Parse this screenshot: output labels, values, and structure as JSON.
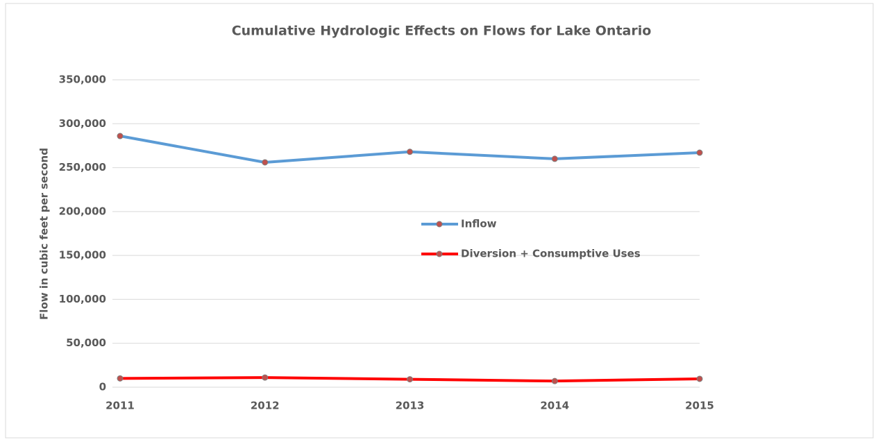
{
  "chart_data": {
    "type": "line",
    "title": "Cumulative Hydrologic Effects on Flows for Lake Ontario",
    "y_label": "Flow in cubic feet per second",
    "categories": [
      "2011",
      "2012",
      "2013",
      "2014",
      "2015"
    ],
    "series": [
      {
        "name": "Inflow",
        "color": "#5b9bd5",
        "values": [
          286000,
          256000,
          268000,
          260000,
          267000
        ]
      },
      {
        "name": "Diversion + Consumptive Uses",
        "color": "#ff0000",
        "values": [
          10000,
          11000,
          9000,
          7000,
          9500
        ]
      }
    ],
    "ylim": [
      0,
      350000
    ],
    "yticks": [
      0,
      {
        "value": 50000,
        "label": "50,000"
      },
      {
        "value": 100000,
        "label": "100,000"
      },
      {
        "value": 150000,
        "label": "150,000"
      },
      {
        "value": 200000,
        "label": "200,000"
      },
      {
        "value": 250000,
        "label": "250,000"
      },
      {
        "value": 300000,
        "label": "300,000"
      },
      {
        "value": 350000,
        "label": "350,000"
      }
    ],
    "grid": true,
    "legend": "center"
  }
}
